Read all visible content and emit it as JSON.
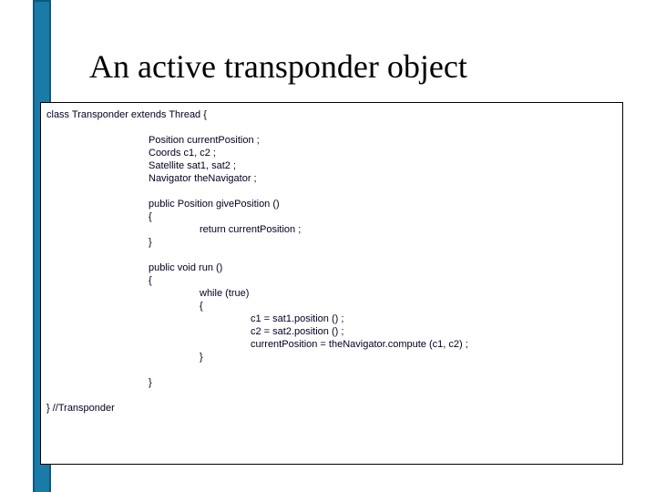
{
  "slide": {
    "title": "An active transponder object",
    "title_fontsize": 36,
    "title_font": "Times New Roman",
    "title_color": "#000000",
    "background_color": "#ffffff",
    "accent_bar_color": "#1a7aa8",
    "accent_bar_border": "#0d5a7d"
  },
  "code": {
    "font_family": "Arial",
    "font_size": 11,
    "text_color": "#000022",
    "border_color": "#000000",
    "lines": {
      "l0": "class Transponder extends Thread {",
      "l1": "Position currentPosition ;",
      "l2": "Coords c1, c2 ;",
      "l3": "Satellite sat1, sat2 ;",
      "l4": "Navigator theNavigator ;",
      "l5": "public Position givePosition ()",
      "l6": "{",
      "l7": "return currentPosition ;",
      "l8": "}",
      "l9": "public void run ()",
      "l10": "{",
      "l11": "while (true)",
      "l12": "{",
      "l13": "c1 = sat1.position () ;",
      "l14": "c2 = sat2.position () ;",
      "l15": "currentPosition = theNavigator.compute (c1, c2) ;",
      "l16": "}",
      "l17": "}",
      "l18": "} //Transponder"
    }
  }
}
